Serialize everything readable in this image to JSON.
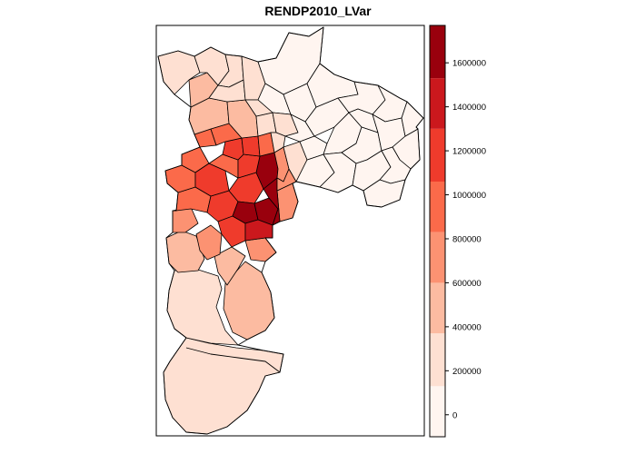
{
  "map": {
    "title": "RENDP2010_LVar",
    "legend": {
      "min": -100000,
      "max": 1770000,
      "ticks": [
        0,
        200000,
        400000,
        600000,
        800000,
        1000000,
        1200000,
        1400000,
        1600000
      ],
      "tick_labels": [
        "0",
        "200000",
        "400000",
        "600000",
        "800000",
        "1000000",
        "1200000",
        "1400000",
        "1600000"
      ],
      "classes": [
        {
          "from": -100000,
          "to": 130000,
          "color": "#fff5f0"
        },
        {
          "from": 130000,
          "to": 370000,
          "color": "#fee0d2"
        },
        {
          "from": 370000,
          "to": 600000,
          "color": "#fcbba1"
        },
        {
          "from": 600000,
          "to": 830000,
          "color": "#fc9272"
        },
        {
          "from": 830000,
          "to": 1060000,
          "color": "#fb6a4a"
        },
        {
          "from": 1060000,
          "to": 1300000,
          "color": "#ef3b2c"
        },
        {
          "from": 1300000,
          "to": 1530000,
          "color": "#cb181d"
        },
        {
          "from": 1530000,
          "to": 1770000,
          "color": "#99000d"
        }
      ]
    }
  }
}
